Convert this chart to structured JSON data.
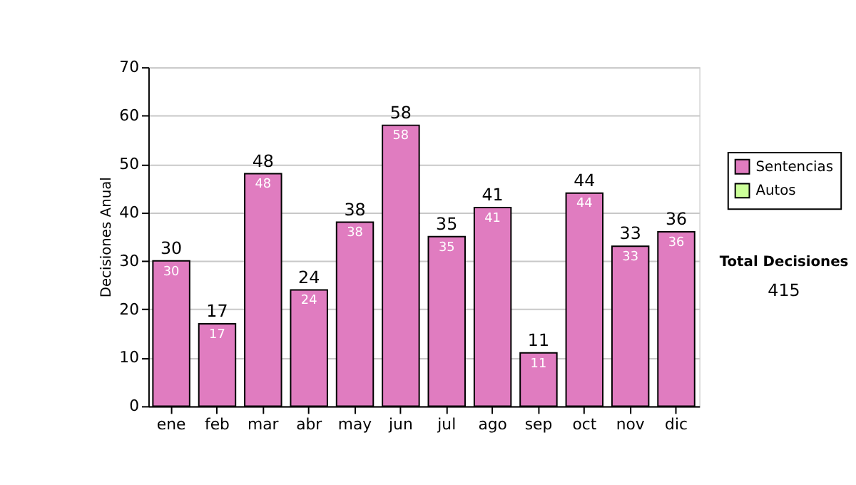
{
  "chart_data": {
    "type": "bar",
    "stacked": true,
    "ylabel": "Decisiones Anual",
    "categories": [
      "ene",
      "feb",
      "mar",
      "abr",
      "may",
      "jun",
      "jul",
      "ago",
      "sep",
      "oct",
      "nov",
      "dic"
    ],
    "series": [
      {
        "name": "Sentencias",
        "color": "#e07cc0",
        "values": [
          30,
          17,
          48,
          24,
          38,
          58,
          35,
          41,
          11,
          44,
          33,
          36
        ]
      },
      {
        "name": "Autos",
        "color": "#ccff99",
        "values": [
          null,
          null,
          null,
          null,
          null,
          null,
          null,
          null,
          null,
          null,
          null,
          null
        ]
      }
    ],
    "totals": [
      "30",
      "17",
      "48",
      "24",
      "38",
      "58",
      "35",
      "41",
      "11",
      "44",
      "33",
      "36"
    ],
    "data_labels": true,
    "ylim": [
      0,
      70
    ],
    "yticks": [
      0,
      10,
      20,
      30,
      40,
      50,
      60,
      70
    ],
    "grid": "y",
    "legend": "right",
    "annotations": [
      "Total Decisiones",
      "415"
    ]
  }
}
